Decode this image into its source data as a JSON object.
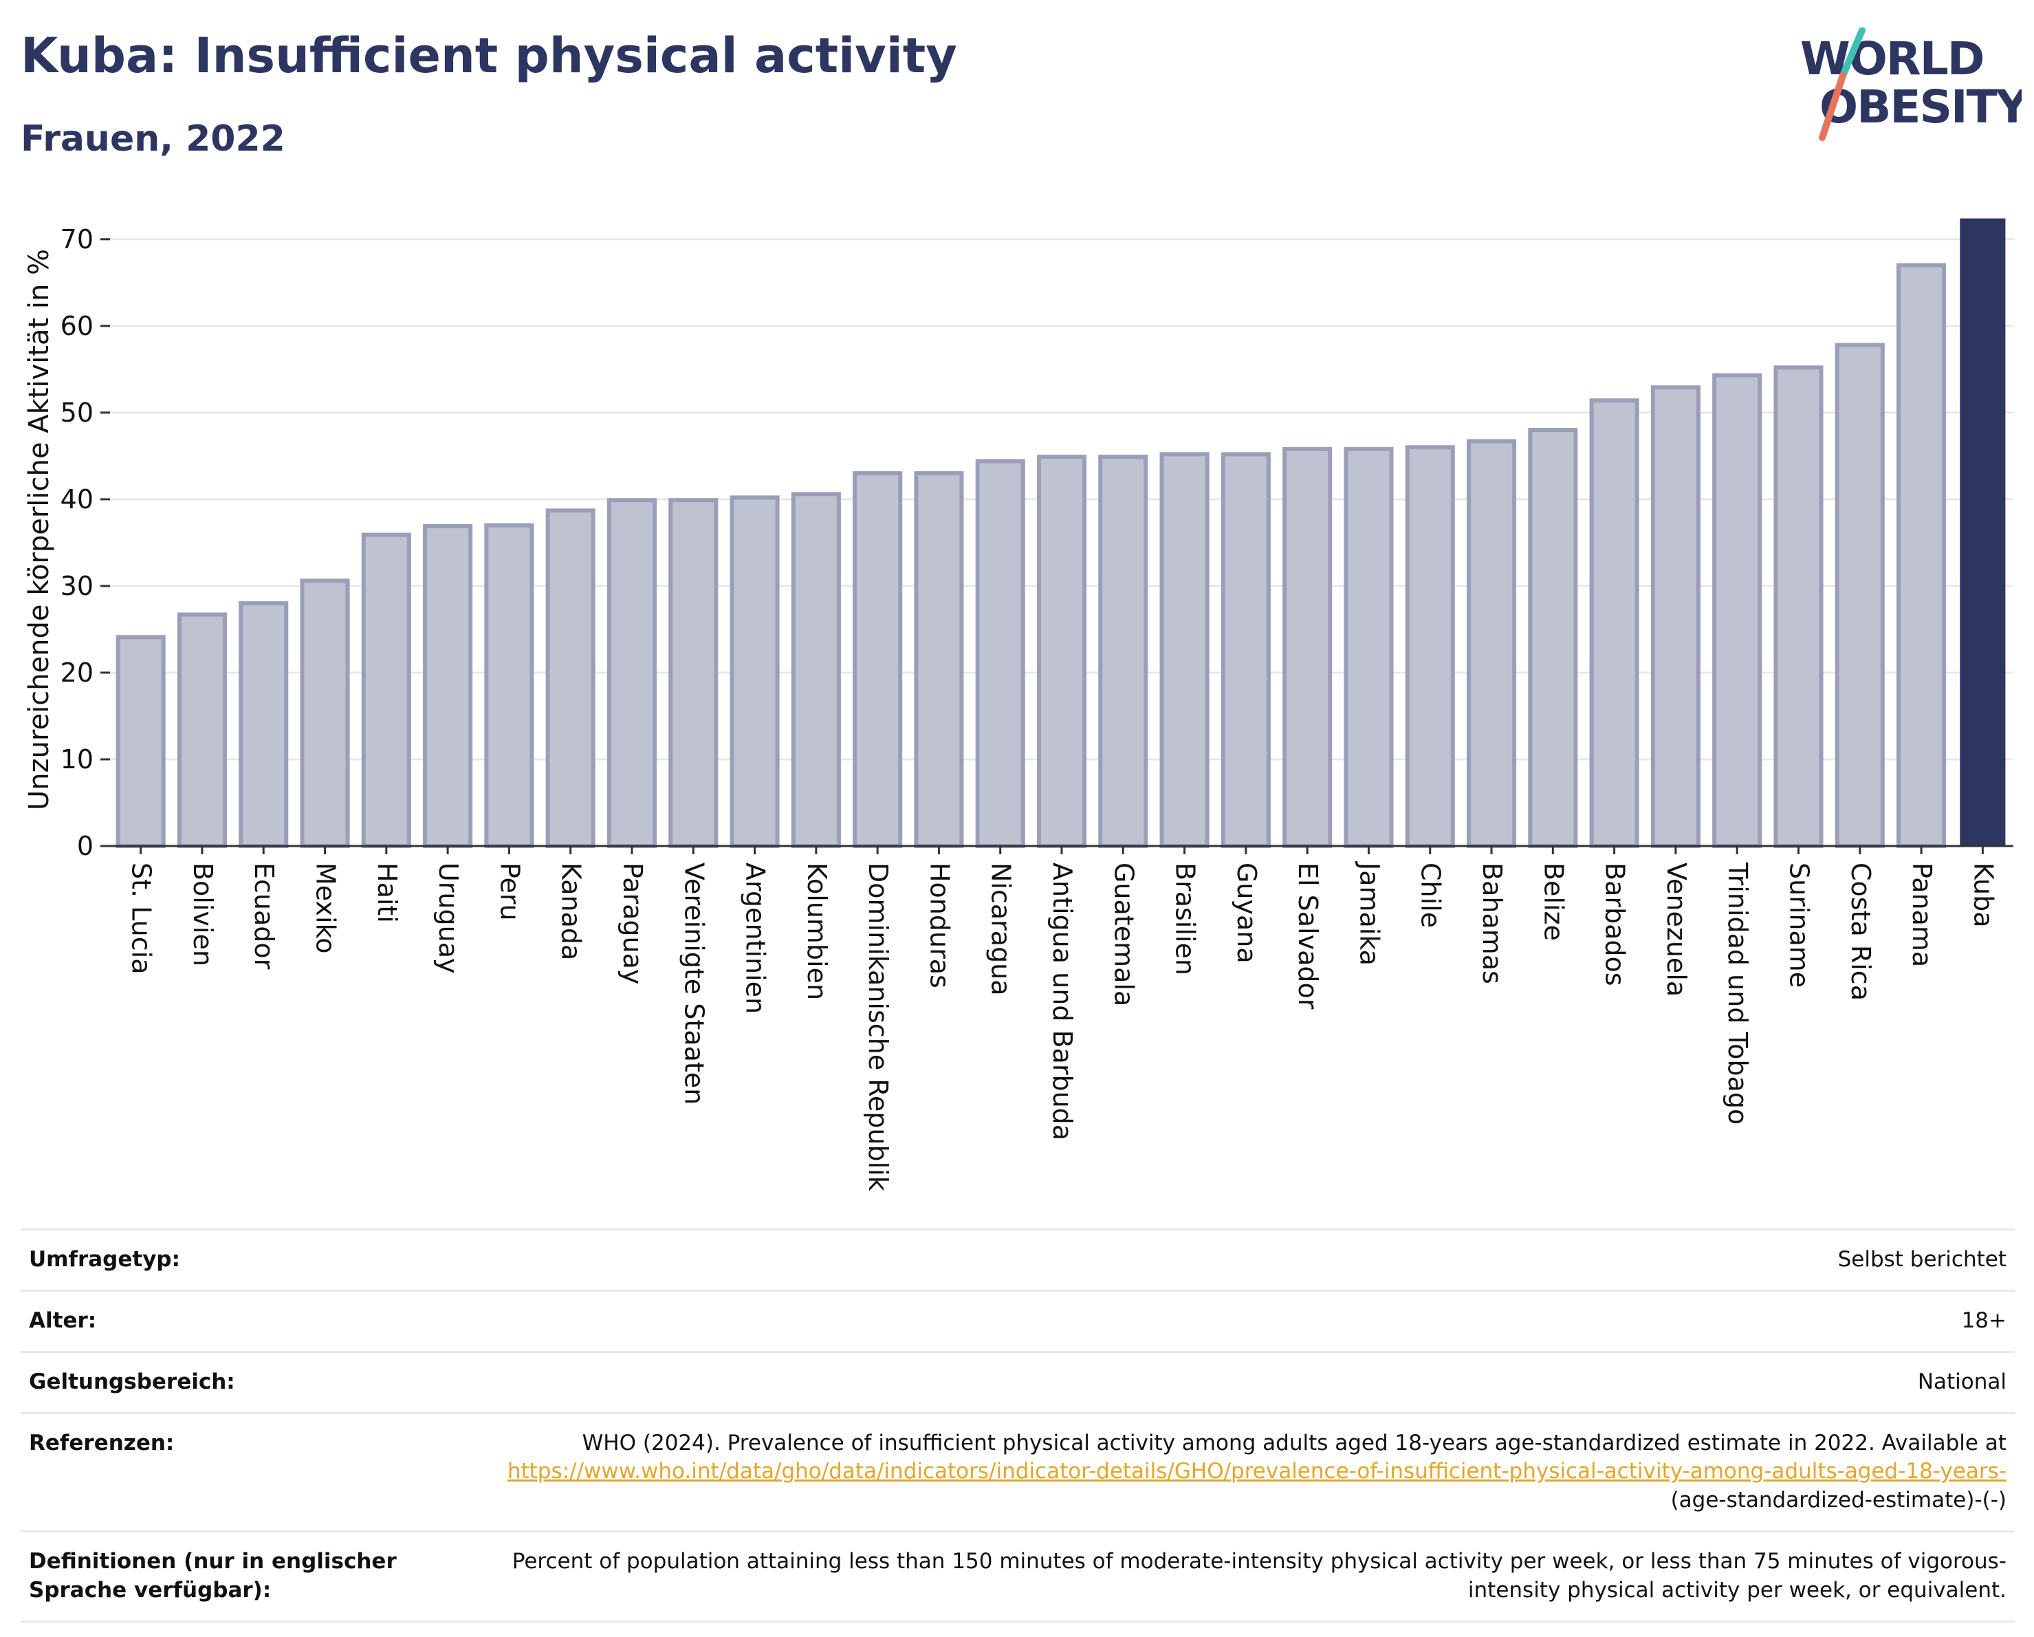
{
  "header": {
    "title": "Kuba: Insufficient physical activity",
    "subtitle": "Frauen, 2022"
  },
  "logo": {
    "line1": "WORLD",
    "line2": "OBESITY",
    "text_color": "#2d3561",
    "slash_colors": [
      "#3fbfb4",
      "#e8725a"
    ]
  },
  "colors": {
    "bar_default_fill": "#bfc2d0",
    "bar_default_stroke": "#9a9eb8",
    "bar_highlight": "#2d3561",
    "grid": "#e6e8ee"
  },
  "chart_data": {
    "type": "bar",
    "ylabel": "Unzureichende körperliche Aktivität in %",
    "ylim": [
      0,
      73
    ],
    "yticks": [
      0,
      10,
      20,
      30,
      40,
      50,
      60,
      70
    ],
    "grid": true,
    "highlight": "Kuba",
    "categories": [
      "St. Lucia",
      "Bolivien",
      "Ecuador",
      "Mexiko",
      "Haiti",
      "Uruguay",
      "Peru",
      "Kanada",
      "Paraguay",
      "Vereinigte Staaten",
      "Argentinien",
      "Kolumbien",
      "Dominikanische Republik",
      "Honduras",
      "Nicaragua",
      "Antigua und Barbuda",
      "Guatemala",
      "Brasilien",
      "Guyana",
      "El Salvador",
      "Jamaika",
      "Chile",
      "Bahamas",
      "Belize",
      "Barbados",
      "Venezuela",
      "Trinidad und Tobago",
      "Suriname",
      "Costa Rica",
      "Panama",
      "Kuba"
    ],
    "values": [
      24.1,
      26.7,
      28.0,
      30.6,
      35.9,
      36.9,
      37.0,
      38.7,
      39.9,
      39.9,
      40.2,
      40.6,
      43.0,
      43.0,
      44.4,
      44.9,
      44.9,
      45.2,
      45.2,
      45.8,
      45.8,
      46.0,
      46.7,
      48.0,
      51.4,
      52.9,
      54.3,
      55.2,
      57.8,
      67.0,
      72.4
    ]
  },
  "info": {
    "survey_label": "Umfragetyp:",
    "survey_value": "Selbst berichtet",
    "age_label": "Alter:",
    "age_value": "18+",
    "scope_label": "Geltungsbereich:",
    "scope_value": "National",
    "ref_label": "Referenzen:",
    "ref_text": "WHO (2024). Prevalence of insufficient physical activity among adults aged 18-years age-standardized estimate in 2022. Available at",
    "ref_link": "https://www.who.int/data/gho/data/indicators/indicator-details/GHO/prevalence-of-insufficient-physical-activity-among-adults-aged-18-years-",
    "ref_suffix": "(age-standardized-estimate)-(-)",
    "def_label": "Definitionen (nur in englischer Sprache verfügbar):",
    "def_value": "Percent of population attaining less than 150 minutes of moderate-intensity physical activity per week, or less than 75 minutes of vigorous-intensity physical activity per week, or equivalent."
  }
}
